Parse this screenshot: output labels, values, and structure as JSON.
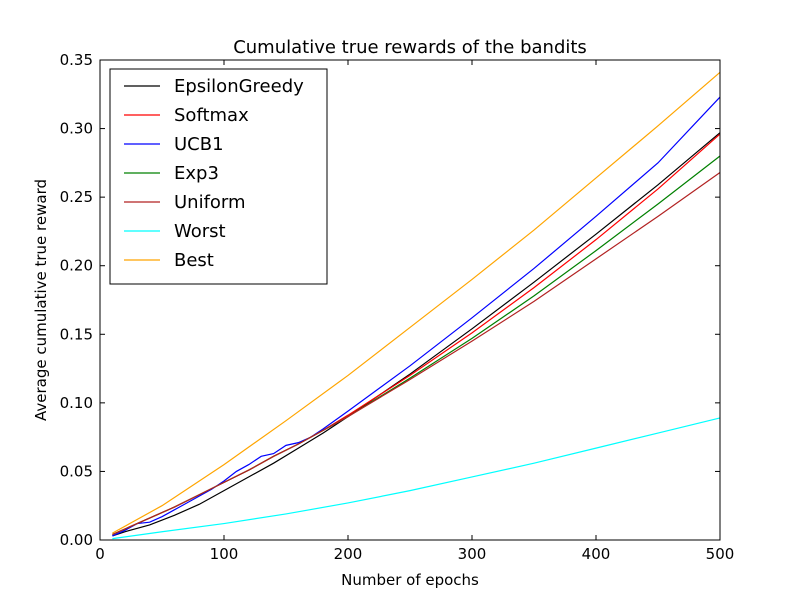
{
  "chart_data": {
    "type": "line",
    "title": "Cumulative true rewards of the bandits",
    "xlabel": "Number of epochs",
    "ylabel": "Average cumulative true reward",
    "xlim": [
      0,
      500
    ],
    "ylim": [
      0,
      0.35
    ],
    "xticks": [
      "0",
      "100",
      "200",
      "300",
      "400",
      "500"
    ],
    "yticks": [
      "0.00",
      "0.05",
      "0.10",
      "0.15",
      "0.20",
      "0.25",
      "0.30",
      "0.35"
    ],
    "grid": false,
    "legend_position": "top-left",
    "series": [
      {
        "name": "EpsilonGreedy",
        "color": "#000000",
        "x": [
          10,
          20,
          40,
          60,
          80,
          100,
          120,
          140,
          160,
          180,
          200,
          250,
          300,
          350,
          400,
          450,
          500
        ],
        "y": [
          0.003,
          0.006,
          0.011,
          0.018,
          0.026,
          0.036,
          0.046,
          0.056,
          0.067,
          0.078,
          0.09,
          0.121,
          0.154,
          0.188,
          0.223,
          0.259,
          0.297
        ]
      },
      {
        "name": "Softmax",
        "color": "#ff0000",
        "x": [
          10,
          20,
          40,
          60,
          80,
          100,
          120,
          140,
          160,
          180,
          200,
          250,
          300,
          350,
          400,
          450,
          500
        ],
        "y": [
          0.004,
          0.008,
          0.016,
          0.024,
          0.033,
          0.042,
          0.051,
          0.061,
          0.07,
          0.08,
          0.091,
          0.12,
          0.151,
          0.184,
          0.219,
          0.256,
          0.296
        ]
      },
      {
        "name": "UCB1",
        "color": "#0000ff",
        "x": [
          10,
          20,
          30,
          40,
          50,
          60,
          70,
          80,
          90,
          100,
          110,
          120,
          130,
          140,
          150,
          160,
          170,
          180,
          200,
          250,
          300,
          350,
          400,
          450,
          500
        ],
        "y": [
          0.003,
          0.007,
          0.012,
          0.013,
          0.017,
          0.022,
          0.027,
          0.032,
          0.037,
          0.043,
          0.05,
          0.055,
          0.061,
          0.063,
          0.069,
          0.071,
          0.075,
          0.081,
          0.094,
          0.127,
          0.162,
          0.198,
          0.236,
          0.275,
          0.323
        ]
      },
      {
        "name": "Exp3",
        "color": "#008000",
        "x": [
          10,
          20,
          40,
          60,
          80,
          100,
          120,
          140,
          160,
          180,
          200,
          250,
          300,
          350,
          400,
          450,
          500
        ],
        "y": [
          0.004,
          0.008,
          0.016,
          0.024,
          0.033,
          0.042,
          0.051,
          0.061,
          0.07,
          0.08,
          0.09,
          0.118,
          0.147,
          0.178,
          0.211,
          0.245,
          0.28
        ]
      },
      {
        "name": "Uniform",
        "color": "#b22222",
        "x": [
          10,
          20,
          40,
          60,
          80,
          100,
          120,
          140,
          160,
          180,
          200,
          250,
          300,
          350,
          400,
          450,
          500
        ],
        "y": [
          0.004,
          0.008,
          0.016,
          0.024,
          0.033,
          0.042,
          0.051,
          0.061,
          0.07,
          0.08,
          0.09,
          0.117,
          0.145,
          0.174,
          0.205,
          0.236,
          0.268
        ]
      },
      {
        "name": "Worst",
        "color": "#00ffff",
        "x": [
          10,
          50,
          100,
          150,
          200,
          250,
          300,
          350,
          400,
          450,
          500
        ],
        "y": [
          0.001,
          0.006,
          0.012,
          0.019,
          0.027,
          0.036,
          0.046,
          0.056,
          0.067,
          0.078,
          0.089
        ]
      },
      {
        "name": "Best",
        "color": "#ffa500",
        "x": [
          10,
          50,
          100,
          150,
          200,
          250,
          300,
          350,
          400,
          450,
          500
        ],
        "y": [
          0.005,
          0.025,
          0.055,
          0.087,
          0.12,
          0.155,
          0.19,
          0.226,
          0.264,
          0.302,
          0.341
        ]
      }
    ]
  }
}
